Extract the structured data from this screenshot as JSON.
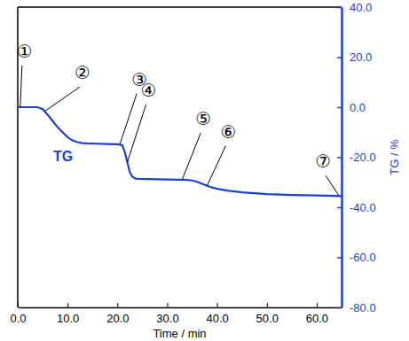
{
  "chart_data": {
    "type": "line",
    "x_label": "Time / min",
    "y_label": "TG / %",
    "x": [
      0,
      2,
      4,
      5,
      6,
      7,
      8,
      9,
      10,
      11,
      12,
      13,
      14,
      16,
      18,
      20,
      21,
      21.5,
      22,
      22.5,
      23,
      23.5,
      24,
      26,
      28,
      30,
      32,
      34,
      35,
      36,
      37,
      38,
      39,
      40,
      42,
      45,
      50,
      55,
      60,
      65
    ],
    "series": [
      {
        "name": "TG",
        "color": "#1a3fd6",
        "line_style": "solid",
        "values": [
          0,
          0,
          0,
          -0.8,
          -3,
          -5.5,
          -8,
          -10,
          -12,
          -13.3,
          -14,
          -14.4,
          -14.5,
          -14.6,
          -14.7,
          -14.8,
          -15.2,
          -18,
          -22,
          -26,
          -27.8,
          -28.4,
          -28.6,
          -28.7,
          -28.8,
          -28.9,
          -29,
          -29.1,
          -29.3,
          -29.8,
          -30.6,
          -31.4,
          -32.1,
          -32.6,
          -33.3,
          -34,
          -34.7,
          -35.1,
          -35.3,
          -35.5
        ],
        "axis": "y2"
      }
    ],
    "xlim": [
      0,
      65
    ],
    "xticks": [
      {
        "value": 0,
        "label": "0.0"
      },
      {
        "value": 10,
        "label": "10.0"
      },
      {
        "value": 20,
        "label": "20.0"
      },
      {
        "value": 30,
        "label": "30.0"
      },
      {
        "value": 40,
        "label": "40.0"
      },
      {
        "value": 50,
        "label": "50.0"
      },
      {
        "value": 60,
        "label": "60.0"
      }
    ],
    "y2lim": [
      -80,
      40
    ],
    "y2ticks": [
      {
        "value": -80,
        "label": "-80.0"
      },
      {
        "value": -60,
        "label": "-60.0"
      },
      {
        "value": -40,
        "label": "-40.0"
      },
      {
        "value": -20,
        "label": "-20.0"
      },
      {
        "value": 0,
        "label": "0.0"
      },
      {
        "value": 20,
        "label": "20.0"
      },
      {
        "value": 40,
        "label": "40.0"
      }
    ],
    "grid": false,
    "annotations": [
      {
        "text": "①",
        "x": 0.5,
        "y": 0
      },
      {
        "text": "②",
        "x": 5.5,
        "y": -1.5
      },
      {
        "text": "③",
        "x": 20.5,
        "y": -14.8
      },
      {
        "text": "④",
        "x": 22,
        "y": -22
      },
      {
        "text": "⑤",
        "x": 33,
        "y": -29
      },
      {
        "text": "⑥",
        "x": 38,
        "y": -31.4
      },
      {
        "text": "⑦",
        "x": 64.5,
        "y": -35.5
      }
    ]
  }
}
